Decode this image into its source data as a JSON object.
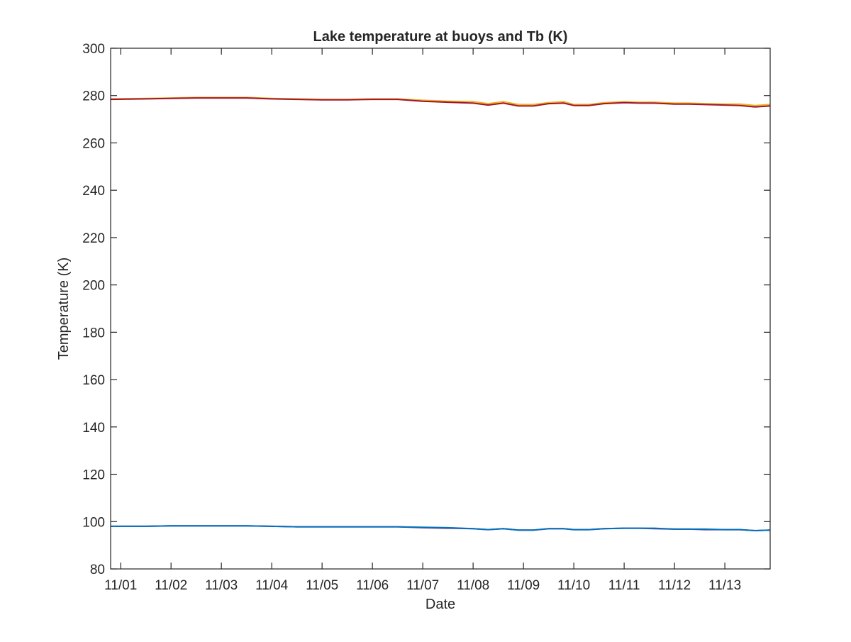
{
  "chart_data": {
    "type": "line",
    "title": "Lake temperature at buoys and Tb (K)",
    "xlabel": "Date",
    "ylabel": "Temperature (K)",
    "ylim": [
      80,
      300
    ],
    "yticks": [
      80,
      100,
      120,
      140,
      160,
      180,
      200,
      220,
      240,
      260,
      280,
      300
    ],
    "xlim": [
      -0.2,
      12.9
    ],
    "xticks": [
      0,
      1,
      2,
      3,
      4,
      5,
      6,
      7,
      8,
      9,
      10,
      11,
      12
    ],
    "xtick_labels": [
      "11/01",
      "11/02",
      "11/03",
      "11/04",
      "11/05",
      "11/06",
      "11/07",
      "11/08",
      "11/09",
      "11/10",
      "11/11",
      "11/12",
      "11/13"
    ],
    "grid": false,
    "legend": "none",
    "series": [
      {
        "color": "#EDB120",
        "x": [
          -0.2,
          0.5,
          1.0,
          1.5,
          2.0,
          2.5,
          3.0,
          3.5,
          4.0,
          4.5,
          5.0,
          5.5,
          6.0,
          6.5,
          7.0,
          7.3,
          7.6,
          7.9,
          8.2,
          8.5,
          8.8,
          9.0,
          9.3,
          9.6,
          10.0,
          10.3,
          10.6,
          11.0,
          11.3,
          11.6,
          12.0,
          12.3,
          12.6,
          12.9
        ],
        "y": [
          278.6,
          278.8,
          279.0,
          279.2,
          279.2,
          279.2,
          278.8,
          278.6,
          278.4,
          278.4,
          278.6,
          278.6,
          278.0,
          277.6,
          277.4,
          276.6,
          277.4,
          276.2,
          276.2,
          277.0,
          277.4,
          276.2,
          276.2,
          277.0,
          277.4,
          277.2,
          277.2,
          276.8,
          276.8,
          276.6,
          276.4,
          276.4,
          275.8,
          276.2
        ]
      },
      {
        "color": "#A2142F",
        "x": [
          -0.2,
          0.5,
          1.0,
          1.5,
          2.0,
          2.5,
          3.0,
          3.5,
          4.0,
          4.5,
          5.0,
          5.5,
          6.0,
          6.5,
          7.0,
          7.3,
          7.6,
          7.9,
          8.2,
          8.5,
          8.8,
          9.0,
          9.3,
          9.6,
          10.0,
          10.3,
          10.6,
          11.0,
          11.3,
          11.6,
          12.0,
          12.3,
          12.6,
          12.9
        ],
        "y": [
          278.4,
          278.6,
          278.8,
          279.0,
          279.0,
          279.0,
          278.6,
          278.4,
          278.2,
          278.2,
          278.4,
          278.4,
          277.6,
          277.2,
          276.8,
          276.0,
          276.8,
          275.6,
          275.6,
          276.6,
          276.8,
          275.8,
          275.8,
          276.6,
          277.0,
          276.8,
          276.8,
          276.4,
          276.4,
          276.2,
          276.0,
          275.8,
          275.2,
          275.6
        ]
      },
      {
        "color": "#7E2F8E",
        "x": [
          -0.2,
          0.5,
          1.0,
          1.5,
          2.0,
          2.5,
          3.0,
          3.5,
          4.0,
          4.5,
          5.0,
          5.5,
          6.0,
          6.5,
          7.0,
          7.3,
          7.6,
          7.9,
          8.2,
          8.5,
          8.8,
          9.0,
          9.3,
          9.6,
          10.0,
          10.3,
          10.6,
          11.0,
          11.3,
          11.6,
          12.0,
          12.3,
          12.6,
          12.9
        ],
        "y": [
          98.0,
          98.0,
          98.2,
          98.2,
          98.2,
          98.2,
          98.0,
          97.8,
          97.8,
          97.8,
          97.8,
          97.8,
          97.4,
          97.2,
          97.0,
          96.6,
          97.0,
          96.4,
          96.4,
          97.0,
          97.0,
          96.6,
          96.6,
          97.0,
          97.2,
          97.2,
          97.0,
          96.8,
          96.8,
          96.6,
          96.6,
          96.6,
          96.2,
          96.4
        ]
      },
      {
        "color": "#0072BD",
        "x": [
          -0.2,
          0.5,
          1.0,
          1.5,
          2.0,
          2.5,
          3.0,
          3.5,
          4.0,
          4.5,
          5.0,
          5.5,
          6.0,
          6.5,
          7.0,
          7.3,
          7.6,
          7.9,
          8.2,
          8.5,
          8.8,
          9.0,
          9.3,
          9.6,
          10.0,
          10.3,
          10.6,
          11.0,
          11.3,
          11.6,
          12.0,
          12.3,
          12.6,
          12.9
        ],
        "y": [
          98.0,
          98.0,
          98.2,
          98.2,
          98.2,
          98.2,
          98.0,
          97.8,
          97.8,
          97.8,
          97.8,
          97.8,
          97.6,
          97.4,
          97.0,
          96.6,
          97.0,
          96.4,
          96.4,
          97.0,
          97.0,
          96.6,
          96.6,
          97.0,
          97.2,
          97.2,
          97.2,
          96.8,
          96.8,
          96.8,
          96.6,
          96.6,
          96.2,
          96.4
        ]
      }
    ]
  }
}
